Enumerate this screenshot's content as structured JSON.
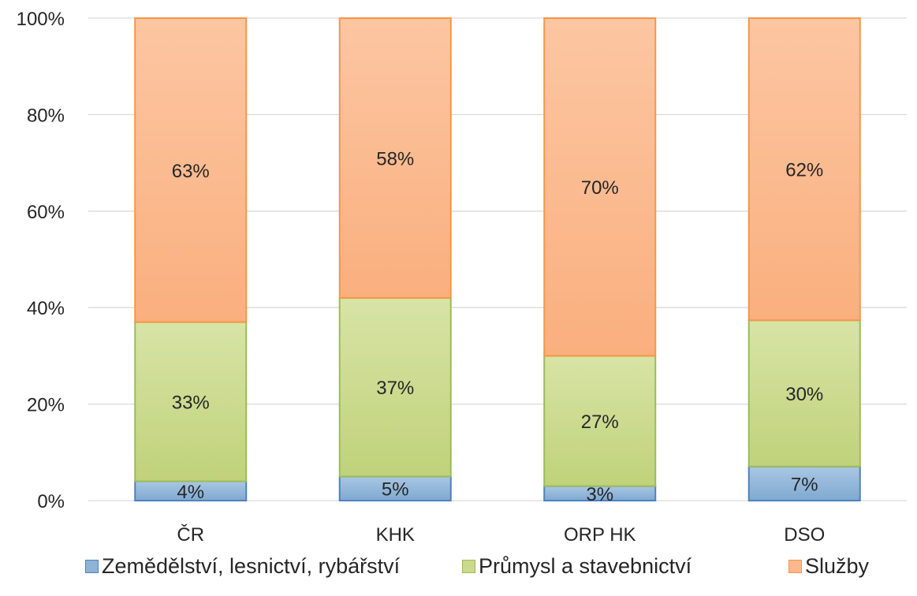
{
  "chart_data": {
    "type": "bar",
    "stacked": true,
    "percent": true,
    "categories": [
      "ČR",
      "KHK",
      "ORP HK",
      "DSO"
    ],
    "series": [
      {
        "name": "Zemědělství, lesnictví, rybářství",
        "values": [
          4,
          5,
          3,
          7
        ],
        "labels": [
          "4%",
          "5%",
          "3%",
          "7%"
        ],
        "color": "#8db3d6",
        "stroke": "#4f81bd"
      },
      {
        "name": "Průmysl a stavebnictví",
        "values": [
          33,
          37,
          27,
          30
        ],
        "labels": [
          "33%",
          "37%",
          "27%",
          "30%"
        ],
        "color": "#cad98c",
        "stroke": "#9bbb59"
      },
      {
        "name": "Služby",
        "values": [
          63,
          58,
          70,
          62
        ],
        "labels": [
          "63%",
          "58%",
          "70%",
          "62%"
        ],
        "color": "#fbb88f",
        "stroke": "#f79646"
      }
    ],
    "y_ticks": [
      "0%",
      "20%",
      "40%",
      "60%",
      "80%",
      "100%"
    ],
    "ylim": [
      0,
      100
    ],
    "grid": true,
    "legend_position": "bottom"
  }
}
